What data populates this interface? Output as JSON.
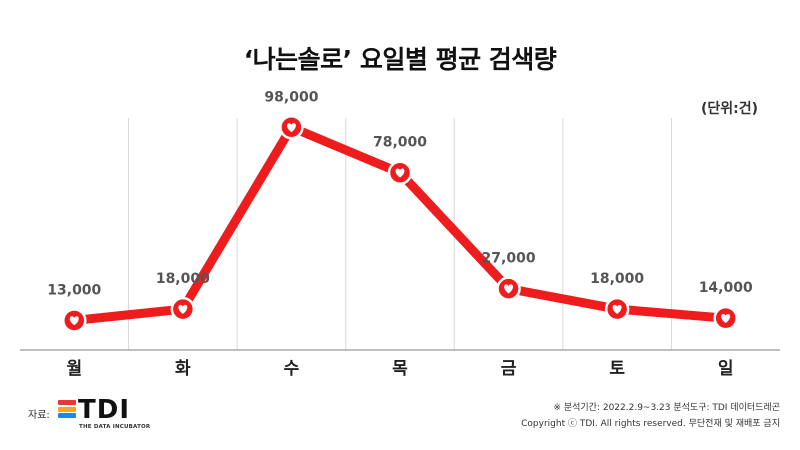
{
  "header": {
    "title": "‘나는솔로’ 요일별 평균 검색량",
    "unit": "(단위:건)"
  },
  "colors": {
    "line": "#ee1c1c",
    "marker_fill": "#ee1c1c",
    "marker_heart": "#ffffff",
    "grid": "#d8d8d8",
    "axis": "#999999",
    "value_label": "#555555",
    "category_label": "#222222"
  },
  "chart_data": {
    "type": "line",
    "categories": [
      "월",
      "화",
      "수",
      "목",
      "금",
      "토",
      "일"
    ],
    "values": [
      13000,
      18000,
      98000,
      78000,
      27000,
      18000,
      14000
    ],
    "value_labels": [
      "13,000",
      "18,000",
      "98,000",
      "78,000",
      "27,000",
      "18,000",
      "14,000"
    ],
    "title": "‘나는솔로’ 요일별 평균 검색량",
    "unit": "(단위:건)",
    "xlabel": "",
    "ylabel": "",
    "ylim": [
      0,
      110000
    ],
    "grid": "vertical",
    "legend": "none",
    "marker_icon": "heart-icon"
  },
  "footer": {
    "source_label": "자료:",
    "logo_text": "TDI",
    "logo_subtext": "THE DATA INCUBATOR",
    "logo_colors": [
      "#e53935",
      "#f5a623",
      "#1e88e5"
    ],
    "note1": "※ 분석기간: 2022.2.9~3.23 분석도구: TDI 데이터드레곤",
    "note2": "Copyright ⓒ TDI. All rights reserved. 무단전재 및 재배포 금지"
  }
}
